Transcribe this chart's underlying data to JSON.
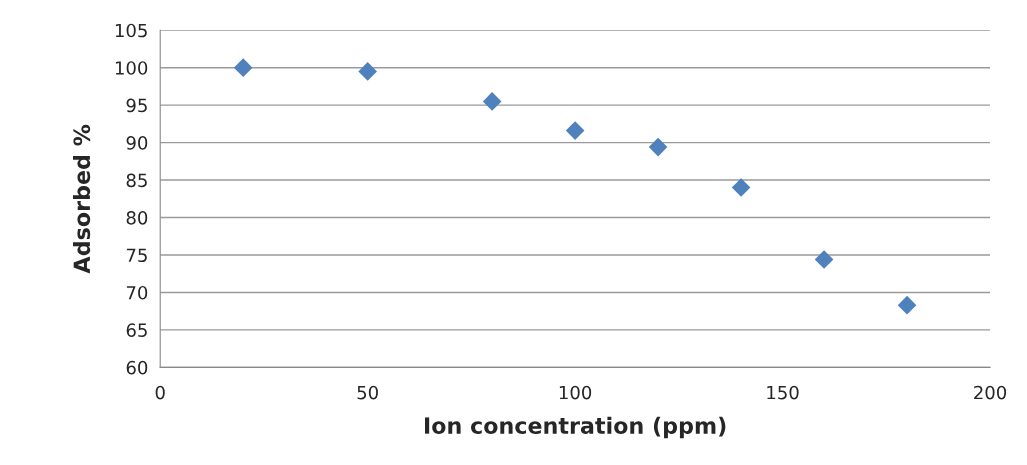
{
  "chart_data": {
    "type": "scatter",
    "xlabel": "Ion concentration (ppm)",
    "ylabel": "Adsorbed %",
    "x": [
      20,
      50,
      80,
      100,
      120,
      140,
      160,
      180
    ],
    "series": [
      {
        "color": "#4f81bd",
        "values": [
          100.0,
          99.5,
          95.5,
          91.6,
          89.4,
          84.0,
          74.4,
          68.3
        ]
      }
    ],
    "xlim": [
      0,
      200
    ],
    "xticks": [
      0,
      50,
      100,
      150,
      200
    ],
    "ylim": [
      60,
      105
    ],
    "yticks": [
      60,
      65,
      70,
      75,
      80,
      85,
      90,
      95,
      100,
      105
    ],
    "grid": "y",
    "marker": "diamond"
  }
}
